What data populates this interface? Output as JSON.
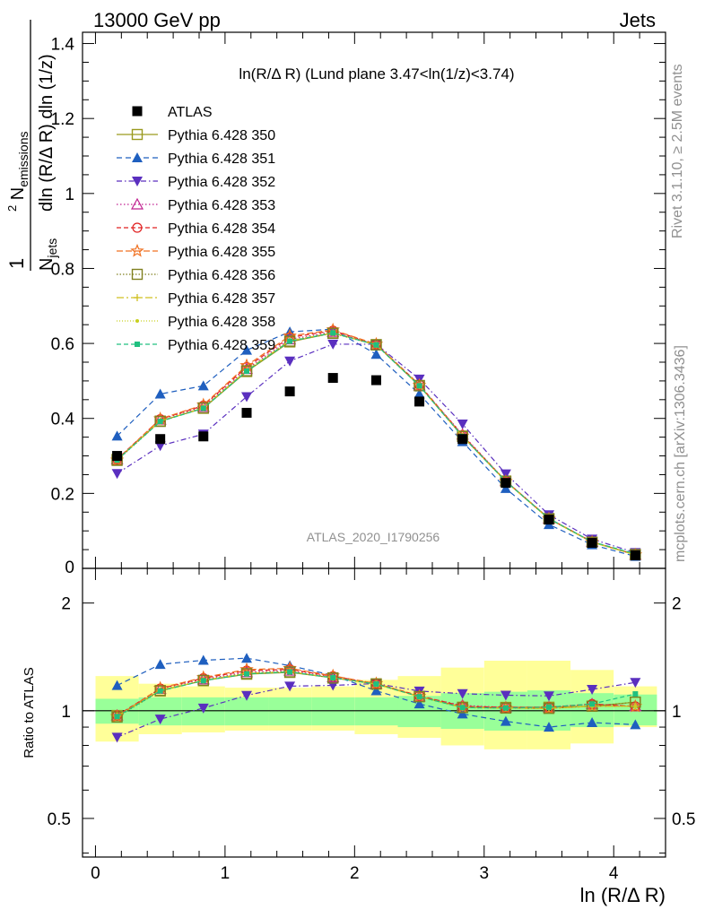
{
  "header": {
    "left": "13000 GeV pp",
    "right": "Jets"
  },
  "plot_title": "ln(R/Δ R) (Lund plane 3.47<ln(1/z)<3.74)",
  "side_labels": {
    "rivet": "Rivet 3.1.10, ≥ 2.5M events",
    "mcplots": "mcplots.cern.ch [arXiv:1306.3436]"
  },
  "watermark": "ATLAS_2020_I1790256",
  "y_axis_label_main": "1/N_jets d²N_emissions / dln(R/ΔR) dln(1/z)",
  "y_axis_label_ratio": "Ratio to ATLAS",
  "x_axis_label": "ln (R/Δ R)",
  "colors": {
    "data": "#000000",
    "p350": "#9a9a1f",
    "p351": "#1f5fbf",
    "p352": "#5a2fbf",
    "p353": "#c02090",
    "p354": "#e02020",
    "p355": "#f07020",
    "p356": "#808020",
    "p357": "#d0c020",
    "p358": "#c8d020",
    "p359": "#20c080",
    "band_inner": "#99ff99",
    "band_outer": "#ffff99"
  },
  "chart_data": {
    "type": "line",
    "x": [
      0.167,
      0.5,
      0.833,
      1.167,
      1.5,
      1.833,
      2.167,
      2.5,
      2.833,
      3.167,
      3.5,
      3.833,
      4.167
    ],
    "main": {
      "xlim": [
        -0.1,
        4.4
      ],
      "ylim": [
        0.0,
        1.43
      ],
      "y_ticks": [
        0.2,
        0.4,
        0.6,
        0.8,
        1.0,
        1.2,
        1.4
      ],
      "y_tick_labels": [
        "0.2",
        "0.4",
        "0.6",
        "0.8",
        "1",
        "1.2",
        "1.4"
      ],
      "zero_label": "0"
    },
    "ratio": {
      "ylim": [
        0.39,
        2.5
      ],
      "y_ticks": [
        0.5,
        1.0,
        2.0
      ],
      "y_tick_labels": [
        "0.5",
        "1",
        "2"
      ],
      "log_scale": true,
      "band_inner_lo": [
        0.92,
        0.91,
        0.91,
        0.91,
        0.91,
        0.91,
        0.91,
        0.9,
        0.89,
        0.88,
        0.88,
        0.9,
        0.91
      ],
      "band_inner_hi": [
        1.08,
        1.09,
        1.09,
        1.09,
        1.09,
        1.09,
        1.09,
        1.1,
        1.12,
        1.13,
        1.14,
        1.12,
        1.11
      ],
      "band_outer_lo": [
        0.82,
        0.86,
        0.87,
        0.88,
        0.88,
        0.88,
        0.86,
        0.84,
        0.8,
        0.78,
        0.78,
        0.81,
        0.9
      ],
      "band_outer_hi": [
        1.25,
        1.19,
        1.17,
        1.16,
        1.16,
        1.17,
        1.22,
        1.25,
        1.32,
        1.38,
        1.38,
        1.3,
        1.17
      ]
    },
    "x_ticks": [
      0,
      1,
      2,
      3,
      4
    ],
    "x_tick_labels": [
      "0",
      "1",
      "2",
      "3",
      "4"
    ],
    "series": [
      {
        "name": "ATLAS",
        "key": "data",
        "marker": "square-filled",
        "dash": "none",
        "values": [
          0.3,
          0.345,
          0.352,
          0.415,
          0.472,
          0.508,
          0.502,
          0.445,
          0.345,
          0.228,
          0.13,
          0.068,
          0.035
        ]
      },
      {
        "name": "Pythia 6.428 350",
        "key": "p350",
        "marker": "square-open",
        "dash": "solid",
        "values": [
          0.291,
          0.393,
          0.427,
          0.525,
          0.604,
          0.628,
          0.597,
          0.488,
          0.353,
          0.233,
          0.133,
          0.07,
          0.037
        ]
      },
      {
        "name": "Pythia 6.428 351",
        "key": "p351",
        "marker": "triangle-up-filled",
        "dash": "6,4",
        "values": [
          0.353,
          0.465,
          0.487,
          0.582,
          0.631,
          0.638,
          0.571,
          0.465,
          0.338,
          0.213,
          0.117,
          0.063,
          0.032
        ]
      },
      {
        "name": "Pythia 6.428 352",
        "key": "p352",
        "marker": "triangle-down-filled",
        "dash": "6,3,1.5,3",
        "values": [
          0.253,
          0.327,
          0.358,
          0.458,
          0.553,
          0.598,
          0.598,
          0.505,
          0.385,
          0.252,
          0.143,
          0.078,
          0.042
        ]
      },
      {
        "name": "Pythia 6.428 353",
        "key": "p353",
        "marker": "triangle-up-open",
        "dash": "1.5,2.5",
        "values": [
          0.291,
          0.397,
          0.431,
          0.532,
          0.611,
          0.631,
          0.597,
          0.488,
          0.357,
          0.233,
          0.133,
          0.071,
          0.036
        ]
      },
      {
        "name": "Pythia 6.428 354",
        "key": "p354",
        "marker": "circle-open",
        "dash": "5,3",
        "values": [
          0.291,
          0.398,
          0.434,
          0.537,
          0.616,
          0.634,
          0.598,
          0.49,
          0.355,
          0.233,
          0.133,
          0.071,
          0.036
        ]
      },
      {
        "name": "Pythia 6.428 355",
        "key": "p355",
        "marker": "star-open",
        "dash": "7,3",
        "values": [
          0.289,
          0.399,
          0.436,
          0.541,
          0.62,
          0.636,
          0.598,
          0.488,
          0.353,
          0.232,
          0.132,
          0.07,
          0.036
        ]
      },
      {
        "name": "Pythia 6.428 356",
        "key": "p356",
        "marker": "square-open",
        "dash": "1.5,2",
        "values": [
          0.288,
          0.392,
          0.428,
          0.527,
          0.606,
          0.627,
          0.596,
          0.487,
          0.352,
          0.232,
          0.132,
          0.07,
          0.037
        ]
      },
      {
        "name": "Pythia 6.428 357",
        "key": "p357",
        "marker": "plus",
        "dash": "8,3,2,3",
        "values": [
          0.29,
          0.393,
          0.428,
          0.528,
          0.607,
          0.628,
          0.596,
          0.487,
          0.352,
          0.232,
          0.132,
          0.07,
          0.036
        ]
      },
      {
        "name": "Pythia 6.428 358",
        "key": "p358",
        "marker": "dot",
        "dash": "1,2",
        "values": [
          0.289,
          0.394,
          0.429,
          0.529,
          0.608,
          0.629,
          0.596,
          0.487,
          0.352,
          0.232,
          0.132,
          0.07,
          0.036
        ]
      },
      {
        "name": "Pythia 6.428 359",
        "key": "p359",
        "marker": "square-small-filled",
        "dash": "5,3",
        "values": [
          0.289,
          0.392,
          0.427,
          0.526,
          0.606,
          0.628,
          0.596,
          0.487,
          0.352,
          0.232,
          0.133,
          0.071,
          0.039
        ]
      }
    ]
  }
}
